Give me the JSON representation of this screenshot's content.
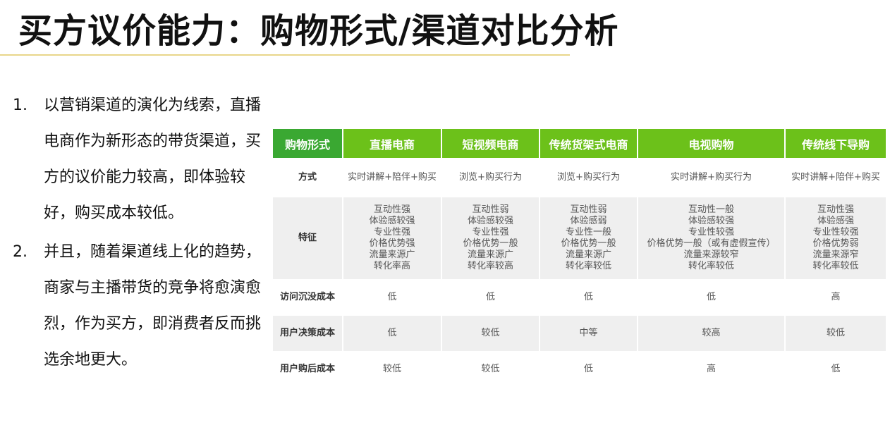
{
  "title": "买方议价能力：购物形式/渠道对比分析",
  "points": [
    {
      "num": "1.",
      "text": "以营销渠道的演化为线索，直播电商作为新形态的带货渠道，买方的议价能力较高，即体验较好，购买成本较低。"
    },
    {
      "num": "2.",
      "text": "并且，随着渠道线上化的趋势，商家与主播带货的竞争将愈演愈烈，作为买方，即消费者反而挑选余地更大。"
    }
  ],
  "table": {
    "header": [
      "购物形式",
      "直播电商",
      "短视频电商",
      "传统货架式电商",
      "电视购物",
      "传统线下导购"
    ],
    "rows": [
      {
        "label": "方式",
        "cells": [
          "实时讲解+陪伴+购买",
          "浏览+购买行为",
          "浏览+购买行为",
          "实时讲解+购买行为",
          "实时讲解+陪伴+购买"
        ]
      },
      {
        "label": "特征",
        "cells": [
          [
            "互动性强",
            "体验感较强",
            "专业性强",
            "价格优势强",
            "流量来源广",
            "转化率高"
          ],
          [
            "互动性弱",
            "体验感较强",
            "专业性强",
            "价格优势一般",
            "流量来源广",
            "转化率较高"
          ],
          [
            "互动性弱",
            "体验感弱",
            "专业性一般",
            "价格优势一般",
            "流量来源广",
            "转化率较低"
          ],
          [
            "互动性一般",
            "体验感较强",
            "专业性较强",
            "价格优势一般（或有虚假宣传）",
            "流量来源较窄",
            "转化率较低"
          ],
          [
            "互动性强",
            "体验感强",
            "专业性较强",
            "价格优势弱",
            "流量来源窄",
            "转化率较低"
          ]
        ]
      },
      {
        "label": "访问沉没成本",
        "cells": [
          "低",
          "低",
          "低",
          "低",
          "高"
        ]
      },
      {
        "label": "用户决策成本",
        "cells": [
          "低",
          "较低",
          "中等",
          "较高",
          "较低"
        ]
      },
      {
        "label": "用户购后成本",
        "cells": [
          "较低",
          "较低",
          "低",
          "高",
          "低"
        ]
      }
    ]
  },
  "colors": {
    "header_first": "#3aa832",
    "header": "#6cc11a",
    "stripe": "#efefef",
    "rule": "#e8d68a"
  }
}
